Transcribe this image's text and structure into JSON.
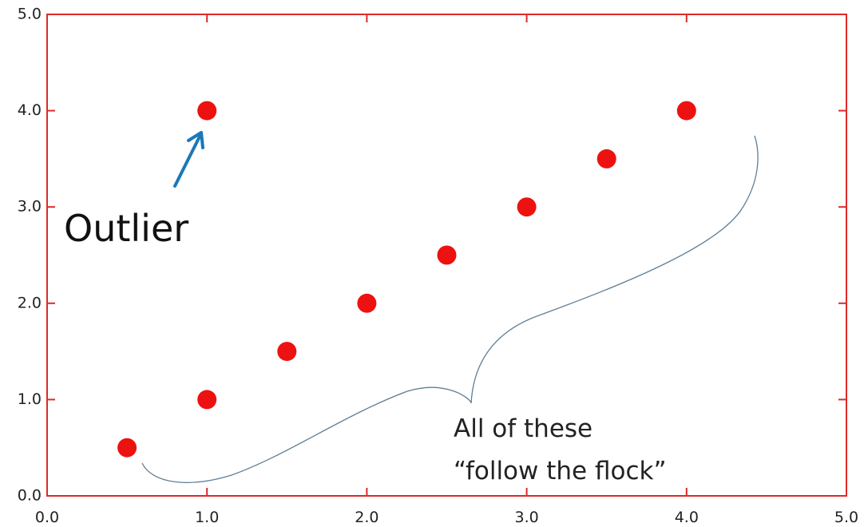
{
  "chart_data": {
    "type": "scatter",
    "xlim": [
      0.0,
      5.0
    ],
    "ylim": [
      0.0,
      5.0
    ],
    "x_ticks": [
      "0.0",
      "1.0",
      "2.0",
      "3.0",
      "4.0",
      "5.0"
    ],
    "y_ticks": [
      "0.0",
      "1.0",
      "2.0",
      "3.0",
      "4.0",
      "5.0"
    ],
    "grid": false,
    "points": [
      {
        "x": 0.5,
        "y": 0.5
      },
      {
        "x": 1.0,
        "y": 1.0
      },
      {
        "x": 1.5,
        "y": 1.5
      },
      {
        "x": 2.0,
        "y": 2.0
      },
      {
        "x": 2.5,
        "y": 2.5
      },
      {
        "x": 3.0,
        "y": 3.0
      },
      {
        "x": 3.5,
        "y": 3.5
      },
      {
        "x": 4.0,
        "y": 4.0
      },
      {
        "x": 1.0,
        "y": 4.0
      }
    ],
    "annotations": {
      "outlier": "Outlier",
      "flock_line1": "All of these",
      "flock_line2": "“follow the flock”"
    },
    "colors": {
      "points": "#ee1111",
      "frame": "#dd2a2a",
      "arrow": "#1a78b8",
      "brace": "#5f7f95"
    }
  }
}
